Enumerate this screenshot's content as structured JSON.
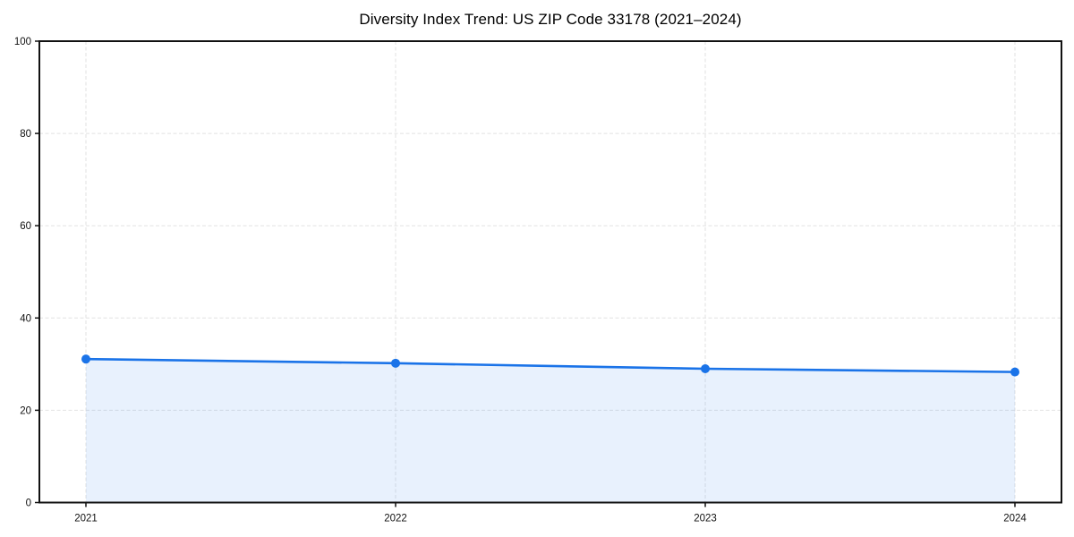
{
  "chart_data": {
    "type": "area",
    "title": "Diversity Index Trend: US ZIP Code 33178 (2021–2024)",
    "x": [
      "2021",
      "2022",
      "2023",
      "2024"
    ],
    "series": [
      {
        "name": "Diversity Index",
        "values": [
          31.1,
          30.2,
          29.0,
          28.3
        ]
      }
    ],
    "xlabel": "",
    "ylabel": "",
    "ylim": [
      0,
      100
    ],
    "yticks": [
      0,
      20,
      40,
      60,
      80,
      100
    ],
    "grid": true,
    "grid_style": "dashed",
    "legend": false,
    "colors": {
      "line": "#1a73e8",
      "marker": "#1a73e8",
      "fill": "rgba(26,115,232,0.10)",
      "grid": "#e2e2e2",
      "spine": "#111111",
      "tick_text": "#111111",
      "background": "#ffffff"
    }
  }
}
